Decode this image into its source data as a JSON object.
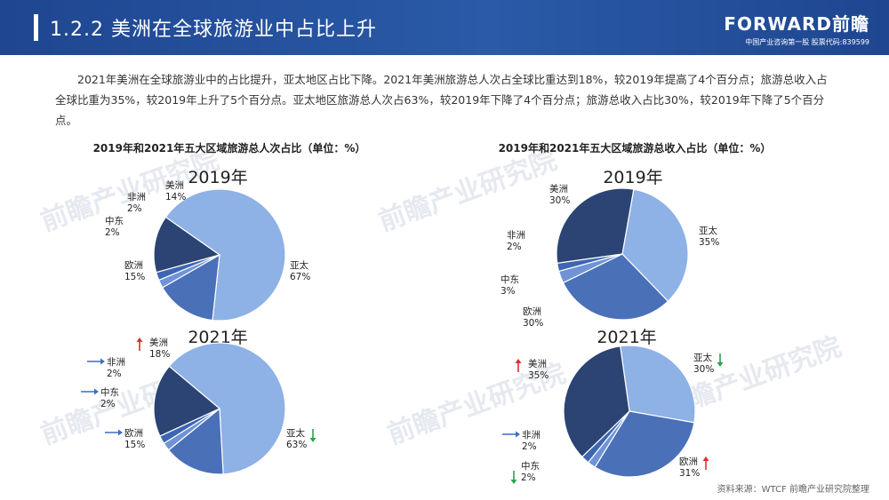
{
  "header": {
    "title": "1.2.2 美洲在全球旅游业中占比上升"
  },
  "logo": {
    "main": "FORWARD前瞻",
    "sub": "中国产业咨询第一股 股票代码:839599"
  },
  "paragraph": "2021年美洲在全球旅游业中的占比提升，亚太地区占比下降。2021年美洲旅游总人次占全球比重达到18%，较2019年提高了4个百分点；旅游总收入占全球比重为35%，较2019年上升了5个百分点。亚太地区旅游总人次占63%，较2019年下降了4个百分点；旅游总收入占比30%，较2019年下降了5个百分点。",
  "watermark": "前瞻产业研究院",
  "source": "资料来源：WTCF 前瞻产业研究院整理",
  "colors": {
    "header": "#1f4690",
    "asia_pacific": "#8eb1e6",
    "americas": "#2b4474",
    "europe": "#4a70b8",
    "middle_east": "#6f93d6",
    "africa": "#3d66b3",
    "arrow_up": "#d93030",
    "arrow_down": "#2ea24e",
    "arrow_right": "#3a6fc4"
  },
  "chart_data": [
    {
      "type": "pie",
      "title": "2019年和2021年五大区域旅游总人次占比（单位：%）",
      "subtitle": "2019年",
      "slices": [
        {
          "name": "亚太",
          "value": 67,
          "label": "67%"
        },
        {
          "name": "欧洲",
          "value": 15,
          "label": "15%"
        },
        {
          "name": "中东",
          "value": 2,
          "label": "2%"
        },
        {
          "name": "非洲",
          "value": 2,
          "label": "2%"
        },
        {
          "name": "美洲",
          "value": 14,
          "label": "14%"
        }
      ]
    },
    {
      "type": "pie",
      "title": "",
      "subtitle": "2021年",
      "slices": [
        {
          "name": "亚太",
          "value": 63,
          "label": "63%",
          "trend": "down"
        },
        {
          "name": "欧洲",
          "value": 15,
          "label": "15%",
          "trend": "flat"
        },
        {
          "name": "中东",
          "value": 2,
          "label": "2%",
          "trend": "flat"
        },
        {
          "name": "非洲",
          "value": 2,
          "label": "2%",
          "trend": "flat"
        },
        {
          "name": "美洲",
          "value": 18,
          "label": "18%",
          "trend": "up"
        }
      ]
    },
    {
      "type": "pie",
      "title": "2019年和2021年五大区域旅游总收入占比（单位：%）",
      "subtitle": "2019年",
      "slices": [
        {
          "name": "亚太",
          "value": 35,
          "label": "35%"
        },
        {
          "name": "欧洲",
          "value": 30,
          "label": "30%"
        },
        {
          "name": "中东",
          "value": 3,
          "label": "3%"
        },
        {
          "name": "非洲",
          "value": 2,
          "label": "2%"
        },
        {
          "name": "美洲",
          "value": 30,
          "label": "30%"
        }
      ]
    },
    {
      "type": "pie",
      "title": "",
      "subtitle": "2021年",
      "slices": [
        {
          "name": "亚太",
          "value": 30,
          "label": "30%",
          "trend": "down"
        },
        {
          "name": "欧洲",
          "value": 31,
          "label": "31%",
          "trend": "up"
        },
        {
          "name": "中东",
          "value": 2,
          "label": "2%",
          "trend": "down"
        },
        {
          "name": "非洲",
          "value": 2,
          "label": "2%",
          "trend": "flat"
        },
        {
          "name": "美洲",
          "value": 35,
          "label": "35%",
          "trend": "up"
        }
      ]
    }
  ]
}
